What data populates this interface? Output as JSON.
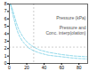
{
  "chart_data": {
    "type": "line",
    "xlim": [
      0,
      90
    ],
    "ylim": [
      0,
      8
    ],
    "xticks": [
      0,
      20,
      40,
      60,
      80
    ],
    "yticks": [
      0,
      1,
      2,
      3,
      4,
      5,
      6,
      7,
      8
    ],
    "grid": false,
    "x": [
      1,
      2,
      3,
      4,
      5,
      6,
      7,
      8,
      10,
      12,
      15,
      18,
      22,
      28,
      35,
      45,
      60,
      75,
      90
    ],
    "series": [
      {
        "color": "#85d4e8",
        "line_style": "dashed",
        "values": [
          8.0,
          7.8,
          7.5,
          7.1,
          6.7,
          6.3,
          5.9,
          5.5,
          4.8,
          4.3,
          3.7,
          3.2,
          2.7,
          2.2,
          1.8,
          1.5,
          1.2,
          1.0,
          0.9
        ]
      },
      {
        "color": "#85d4e8",
        "line_style": "dashed",
        "values": [
          8.0,
          7.6,
          7.1,
          6.6,
          6.1,
          5.7,
          5.2,
          4.8,
          4.1,
          3.6,
          3.0,
          2.6,
          2.1,
          1.7,
          1.4,
          1.1,
          0.9,
          0.7,
          0.6
        ]
      }
    ],
    "reference_lines": [
      {
        "axis": "x",
        "value": 28,
        "color": "#aaaaaa",
        "line_style": "dashed"
      },
      {
        "axis": "y",
        "value": 2.2,
        "color": "#aaaaaa",
        "line_style": "dashed"
      }
    ],
    "annotations": [
      "Pressure (kPa)",
      "Pressure and\nConc. interp(olation)"
    ]
  }
}
